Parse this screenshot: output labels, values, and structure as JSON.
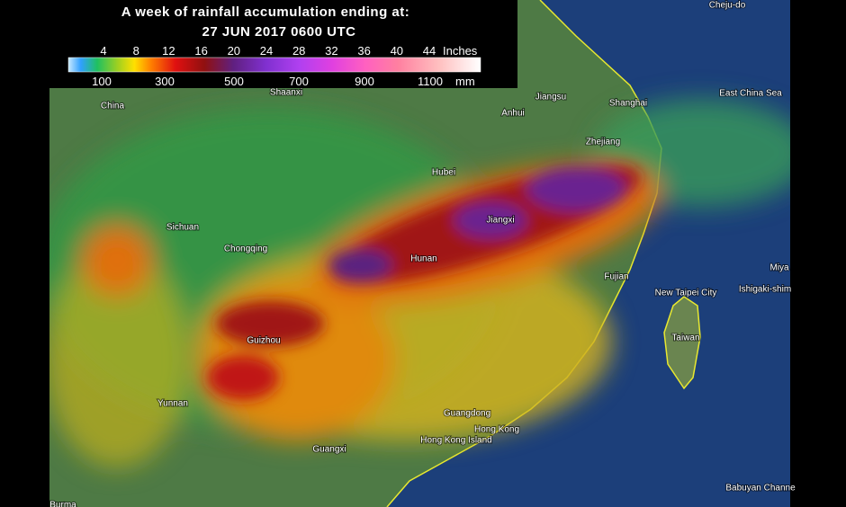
{
  "legend": {
    "title": [
      "A week of rainfall accumulation ending at:",
      "27 JUN 2017 0600 UTC"
    ],
    "inches": [
      4,
      8,
      12,
      16,
      20,
      24,
      28,
      32,
      36,
      40,
      44
    ],
    "inches_unit": "Inches",
    "mm": [
      100,
      300,
      500,
      700,
      900,
      1100
    ],
    "mm_unit": "mm"
  },
  "places": [
    {
      "label": "China"
    },
    {
      "label": "Shaanxi"
    },
    {
      "label": "Jiangsu"
    },
    {
      "label": "Shanghai"
    },
    {
      "label": "East China Sea"
    },
    {
      "label": "Anhui"
    },
    {
      "label": "Zhejiang"
    },
    {
      "label": "Hubei"
    },
    {
      "label": "Sichuan"
    },
    {
      "label": "Jiangxi"
    },
    {
      "label": "Chongqing"
    },
    {
      "label": "Hunan"
    },
    {
      "label": "Fujian"
    },
    {
      "label": "New Taipei City"
    },
    {
      "label": "Ishigaki-shim"
    },
    {
      "label": "Miya"
    },
    {
      "label": "Taiwan"
    },
    {
      "label": "Guizhou"
    },
    {
      "label": "Yunnan"
    },
    {
      "label": "Guangdong"
    },
    {
      "label": "Hong Kong"
    },
    {
      "label": "Hong Kong Island"
    },
    {
      "label": "Guangxi"
    },
    {
      "label": "Burma"
    },
    {
      "label": "Babuyan Channe"
    },
    {
      "label": "Cheju-do"
    }
  ]
}
